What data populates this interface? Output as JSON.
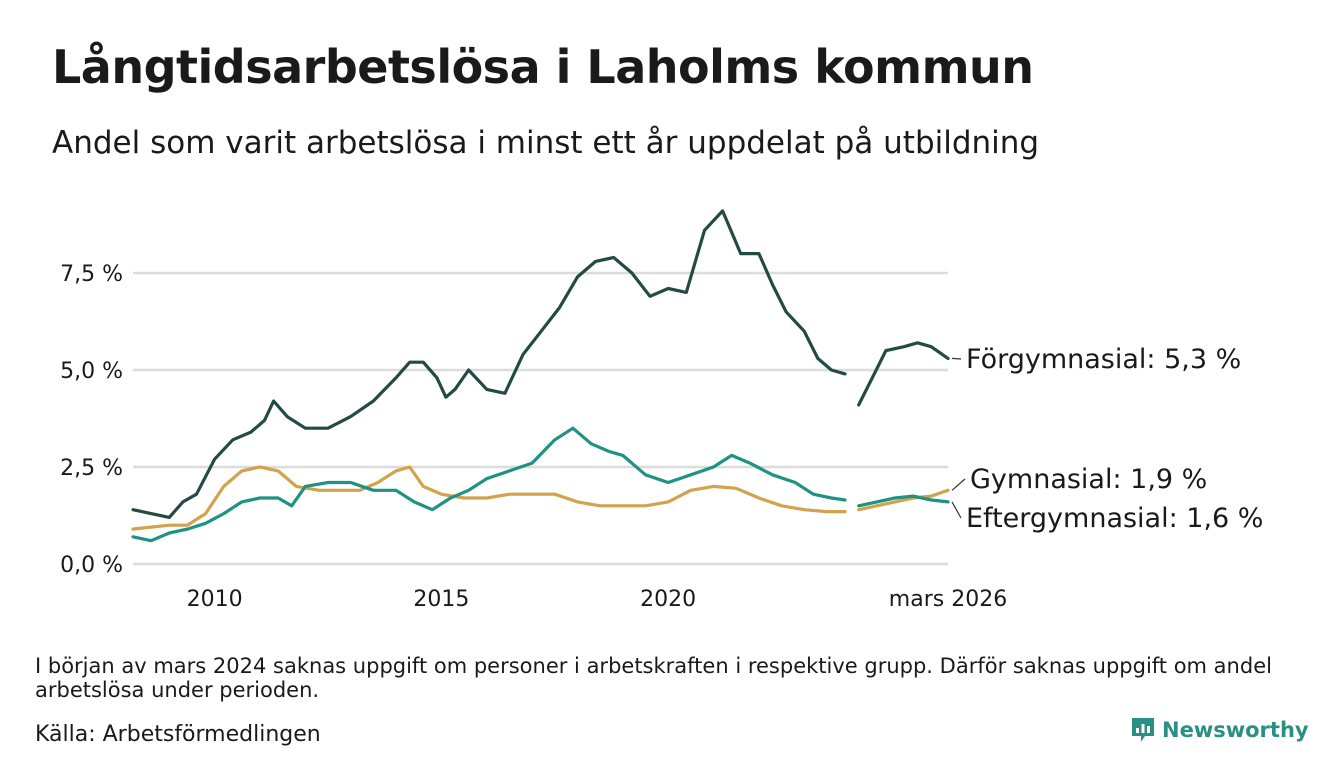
{
  "title": "Långtidsarbetslösa i Laholms kommun",
  "subtitle": "Andel som varit arbetslösa i minst ett år uppdelat på utbildning",
  "note": "I början av mars 2024 saknas uppgift om personer i arbetskraften i respektive grupp. Därför saknas uppgift om andel arbetslösa under perioden.",
  "source": "Källa: Arbetsförmedlingen",
  "brand": "Newsworthy",
  "chart_data": {
    "type": "line",
    "title": "Långtidsarbetslösa i Laholms kommun",
    "xlabel": "",
    "ylabel": "",
    "x_range": [
      2008.2,
      2026.17
    ],
    "ylim": [
      0,
      9.5
    ],
    "y_ticks": [
      0,
      2.5,
      5,
      7.5
    ],
    "y_tick_labels": [
      "0,0 %",
      "2,5 %",
      "5,0 %",
      "7,5 %"
    ],
    "x_ticks": [
      2010,
      2015,
      2020,
      2026.17
    ],
    "x_tick_labels": [
      "2010",
      "2015",
      "2020",
      "mars 2026"
    ],
    "grid": true,
    "gap": [
      2024.0,
      2024.2
    ],
    "series": [
      {
        "name": "Förgymnasial",
        "label": "Förgymnasial: 5,3 %",
        "color": "#234a45",
        "points": [
          [
            2008.2,
            1.4
          ],
          [
            2008.6,
            1.3
          ],
          [
            2009.0,
            1.2
          ],
          [
            2009.3,
            1.6
          ],
          [
            2009.6,
            1.8
          ],
          [
            2010.0,
            2.7
          ],
          [
            2010.4,
            3.2
          ],
          [
            2010.8,
            3.4
          ],
          [
            2011.1,
            3.7
          ],
          [
            2011.3,
            4.2
          ],
          [
            2011.6,
            3.8
          ],
          [
            2012.0,
            3.5
          ],
          [
            2012.5,
            3.5
          ],
          [
            2013.0,
            3.8
          ],
          [
            2013.5,
            4.2
          ],
          [
            2014.0,
            4.8
          ],
          [
            2014.3,
            5.2
          ],
          [
            2014.6,
            5.2
          ],
          [
            2014.9,
            4.8
          ],
          [
            2015.1,
            4.3
          ],
          [
            2015.3,
            4.5
          ],
          [
            2015.6,
            5.0
          ],
          [
            2016.0,
            4.5
          ],
          [
            2016.4,
            4.4
          ],
          [
            2016.8,
            5.4
          ],
          [
            2017.2,
            6.0
          ],
          [
            2017.6,
            6.6
          ],
          [
            2018.0,
            7.4
          ],
          [
            2018.4,
            7.8
          ],
          [
            2018.8,
            7.9
          ],
          [
            2019.2,
            7.5
          ],
          [
            2019.6,
            6.9
          ],
          [
            2020.0,
            7.1
          ],
          [
            2020.4,
            7.0
          ],
          [
            2020.8,
            8.6
          ],
          [
            2021.2,
            9.1
          ],
          [
            2021.6,
            8.0
          ],
          [
            2022.0,
            8.0
          ],
          [
            2022.3,
            7.2
          ],
          [
            2022.6,
            6.5
          ],
          [
            2023.0,
            6.0
          ],
          [
            2023.3,
            5.3
          ],
          [
            2023.6,
            5.0
          ],
          [
            2023.9,
            4.9
          ],
          [
            null,
            null
          ],
          [
            2024.2,
            4.1
          ],
          [
            2024.5,
            4.8
          ],
          [
            2024.8,
            5.5
          ],
          [
            2025.2,
            5.6
          ],
          [
            2025.5,
            5.7
          ],
          [
            2025.8,
            5.6
          ],
          [
            2026.17,
            5.3
          ]
        ]
      },
      {
        "name": "Gymnasial",
        "label": "Gymnasial: 1,9 %",
        "color": "#d2a24c",
        "points": [
          [
            2008.2,
            0.9
          ],
          [
            2008.6,
            0.95
          ],
          [
            2009.0,
            1.0
          ],
          [
            2009.4,
            1.0
          ],
          [
            2009.8,
            1.3
          ],
          [
            2010.2,
            2.0
          ],
          [
            2010.6,
            2.4
          ],
          [
            2011.0,
            2.5
          ],
          [
            2011.4,
            2.4
          ],
          [
            2011.8,
            2.0
          ],
          [
            2012.3,
            1.9
          ],
          [
            2012.8,
            1.9
          ],
          [
            2013.2,
            1.9
          ],
          [
            2013.6,
            2.1
          ],
          [
            2014.0,
            2.4
          ],
          [
            2014.3,
            2.5
          ],
          [
            2014.6,
            2.0
          ],
          [
            2015.0,
            1.8
          ],
          [
            2015.5,
            1.7
          ],
          [
            2016.0,
            1.7
          ],
          [
            2016.5,
            1.8
          ],
          [
            2017.0,
            1.8
          ],
          [
            2017.5,
            1.8
          ],
          [
            2018.0,
            1.6
          ],
          [
            2018.5,
            1.5
          ],
          [
            2019.0,
            1.5
          ],
          [
            2019.5,
            1.5
          ],
          [
            2020.0,
            1.6
          ],
          [
            2020.5,
            1.9
          ],
          [
            2021.0,
            2.0
          ],
          [
            2021.5,
            1.95
          ],
          [
            2022.0,
            1.7
          ],
          [
            2022.5,
            1.5
          ],
          [
            2023.0,
            1.4
          ],
          [
            2023.5,
            1.35
          ],
          [
            2023.9,
            1.35
          ],
          [
            null,
            null
          ],
          [
            2024.2,
            1.4
          ],
          [
            2024.6,
            1.5
          ],
          [
            2025.0,
            1.6
          ],
          [
            2025.4,
            1.7
          ],
          [
            2025.8,
            1.75
          ],
          [
            2026.17,
            1.9
          ]
        ]
      },
      {
        "name": "Eftergymnasial",
        "label": "Eftergymnasial: 1,6 %",
        "color": "#1f9283",
        "points": [
          [
            2008.2,
            0.7
          ],
          [
            2008.6,
            0.6
          ],
          [
            2009.0,
            0.8
          ],
          [
            2009.4,
            0.9
          ],
          [
            2009.8,
            1.05
          ],
          [
            2010.2,
            1.3
          ],
          [
            2010.6,
            1.6
          ],
          [
            2011.0,
            1.7
          ],
          [
            2011.4,
            1.7
          ],
          [
            2011.7,
            1.5
          ],
          [
            2012.0,
            2.0
          ],
          [
            2012.5,
            2.1
          ],
          [
            2013.0,
            2.1
          ],
          [
            2013.5,
            1.9
          ],
          [
            2014.0,
            1.9
          ],
          [
            2014.4,
            1.6
          ],
          [
            2014.8,
            1.4
          ],
          [
            2015.2,
            1.7
          ],
          [
            2015.6,
            1.9
          ],
          [
            2016.0,
            2.2
          ],
          [
            2016.5,
            2.4
          ],
          [
            2017.0,
            2.6
          ],
          [
            2017.5,
            3.2
          ],
          [
            2017.9,
            3.5
          ],
          [
            2018.3,
            3.1
          ],
          [
            2018.7,
            2.9
          ],
          [
            2019.0,
            2.8
          ],
          [
            2019.5,
            2.3
          ],
          [
            2020.0,
            2.1
          ],
          [
            2020.5,
            2.3
          ],
          [
            2021.0,
            2.5
          ],
          [
            2021.4,
            2.8
          ],
          [
            2021.8,
            2.6
          ],
          [
            2022.3,
            2.3
          ],
          [
            2022.8,
            2.1
          ],
          [
            2023.2,
            1.8
          ],
          [
            2023.6,
            1.7
          ],
          [
            2023.9,
            1.65
          ],
          [
            null,
            null
          ],
          [
            2024.2,
            1.5
          ],
          [
            2024.6,
            1.6
          ],
          [
            2025.0,
            1.7
          ],
          [
            2025.4,
            1.75
          ],
          [
            2025.8,
            1.65
          ],
          [
            2026.17,
            1.6
          ]
        ]
      }
    ]
  }
}
